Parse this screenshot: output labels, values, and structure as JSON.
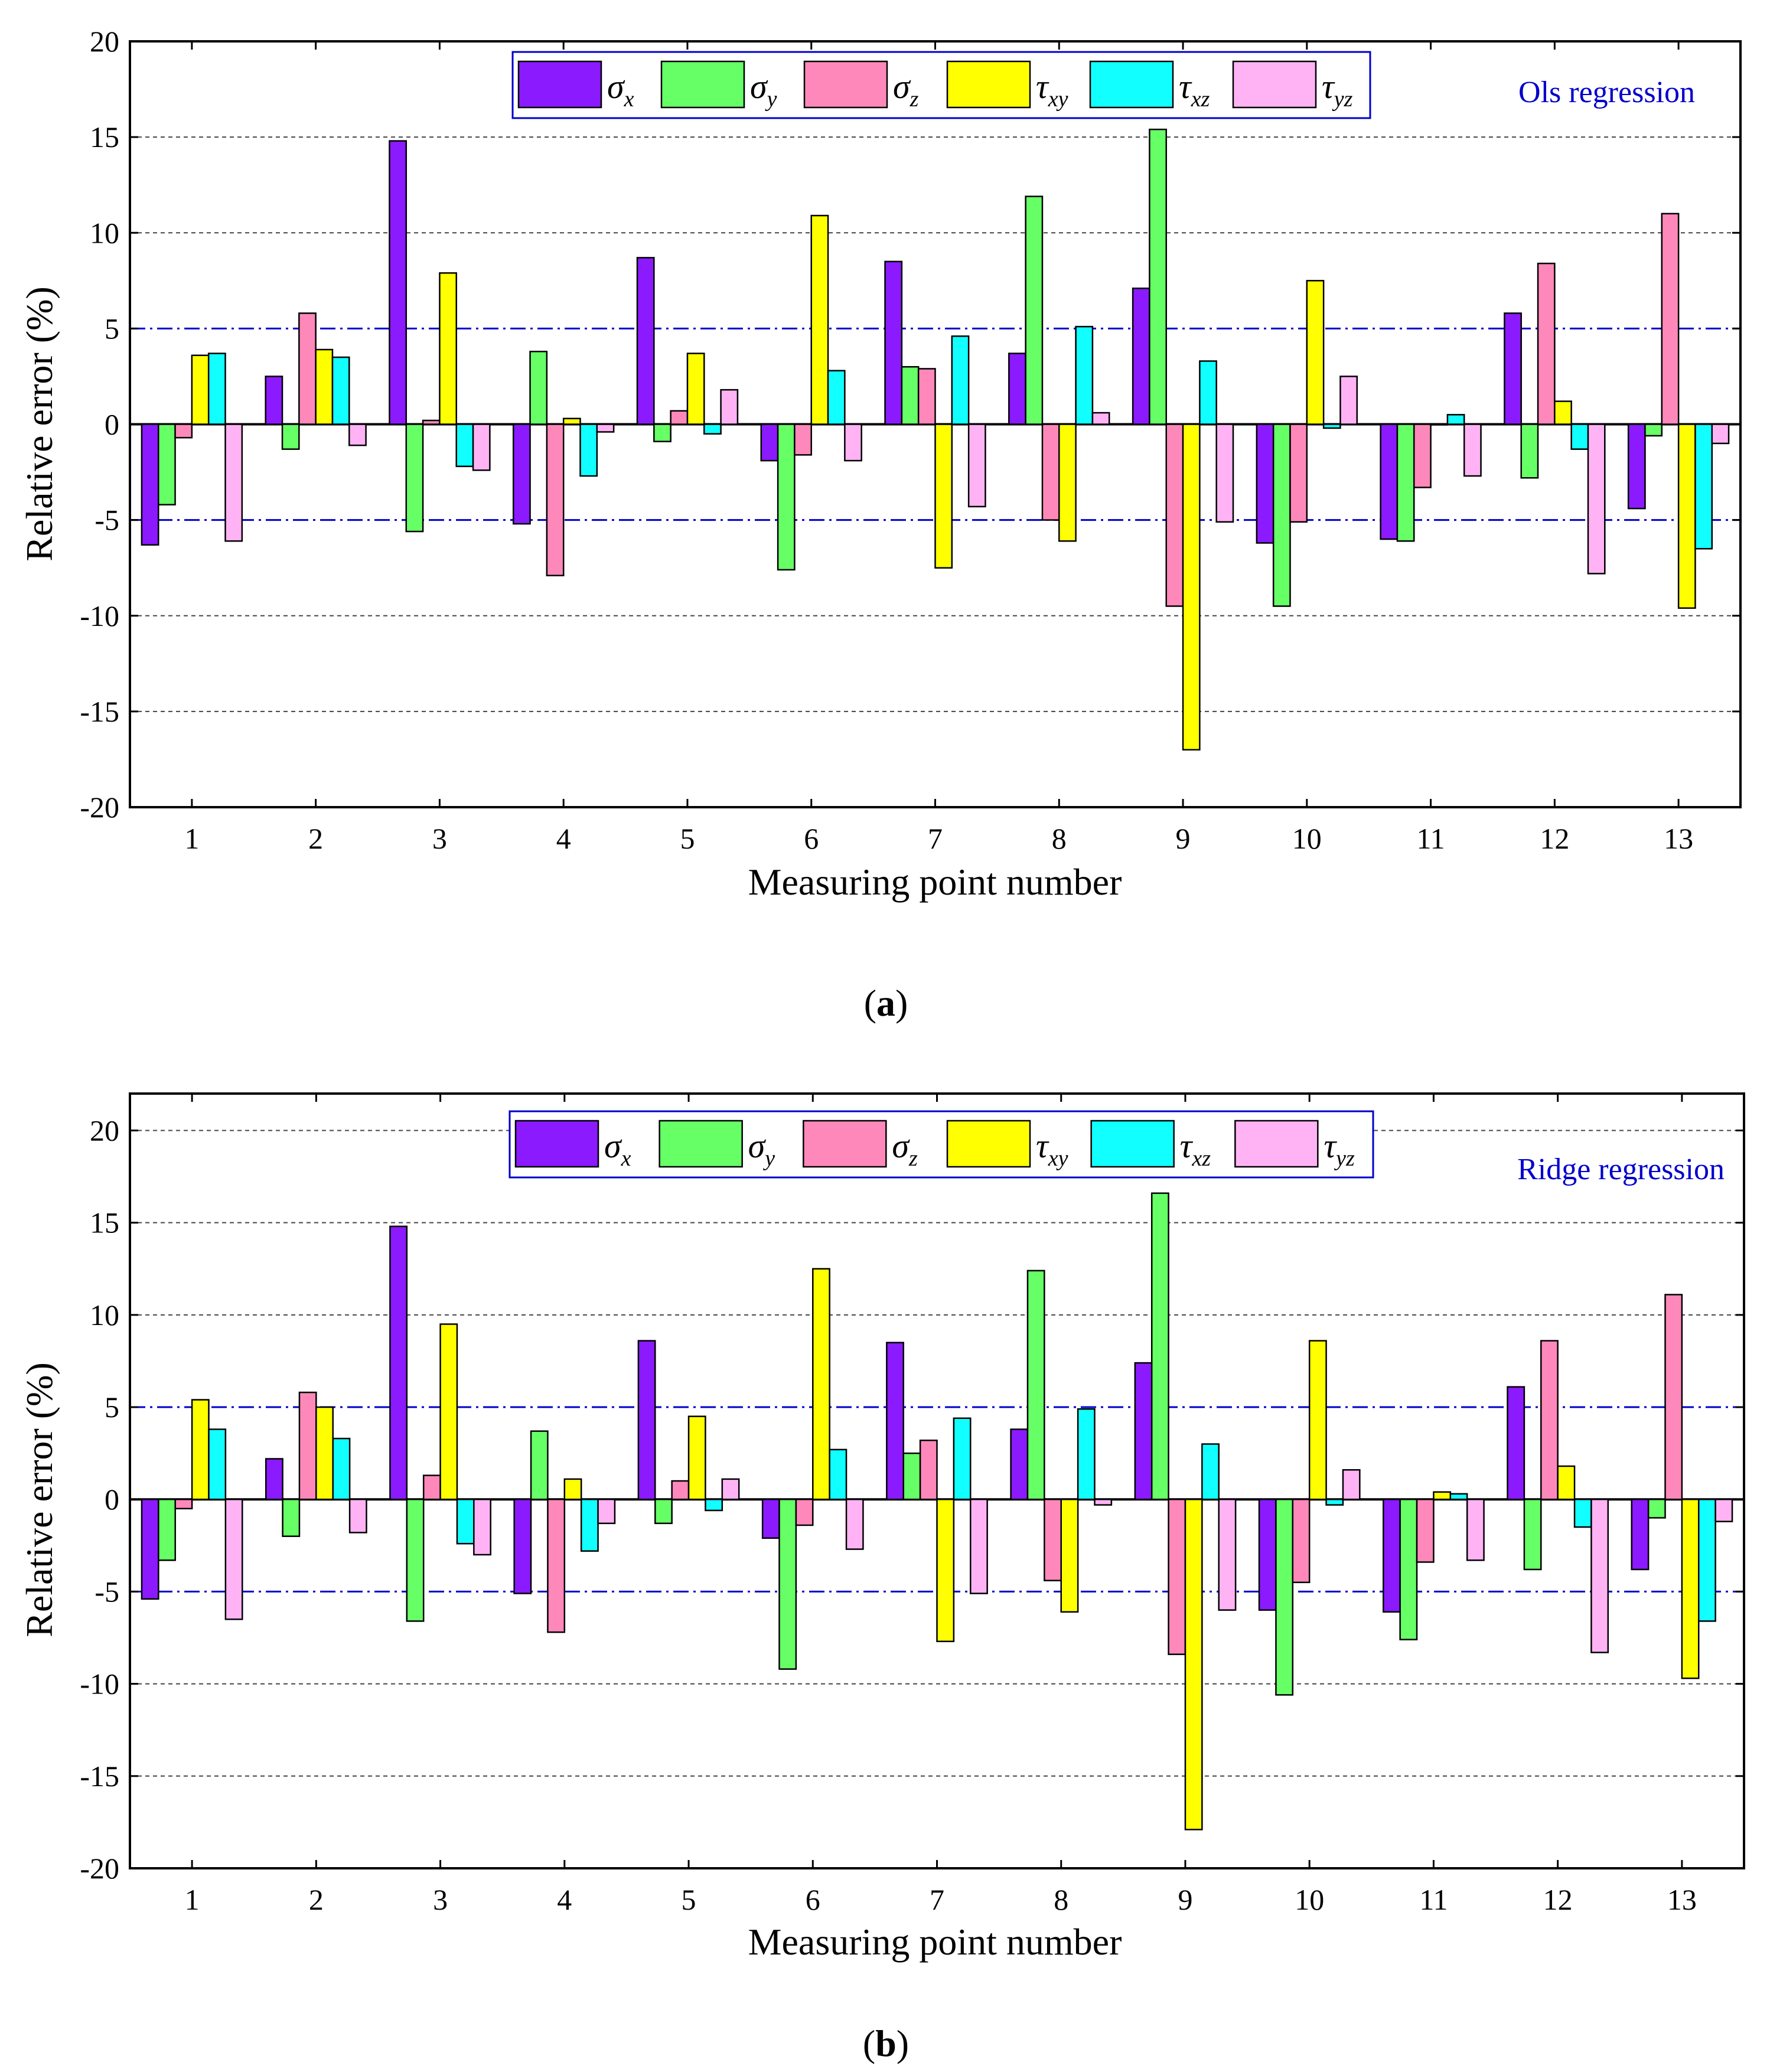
{
  "series_names": [
    "σx",
    "σy",
    "σz",
    "τxy",
    "τxz",
    "τyz"
  ],
  "legend": [
    {
      "sym": "σ",
      "sub": "x"
    },
    {
      "sym": "σ",
      "sub": "y"
    },
    {
      "sym": "σ",
      "sub": "z"
    },
    {
      "sym": "τ",
      "sub": "xy"
    },
    {
      "sym": "τ",
      "sub": "xz"
    },
    {
      "sym": "τ",
      "sub": "yz"
    }
  ],
  "colors": [
    "#8b1aff",
    "#66ff66",
    "#ff88bb",
    "#ffff00",
    "#11ffff",
    "#ffb3f5"
  ],
  "reference_line_color": "#0000cc",
  "chart_data": [
    {
      "type": "bar",
      "caption": "a",
      "annotation": "Ols regression",
      "xlabel": "Measuring point number",
      "ylabel": "Relative error (%)",
      "ylim": [
        -20,
        20
      ],
      "yticks": [
        -20,
        -15,
        -10,
        -5,
        0,
        5,
        10,
        15,
        20
      ],
      "ygrid_dashed": [
        -15,
        -10,
        10,
        15
      ],
      "reference_lines": [
        -5,
        5
      ],
      "categories": [
        "1",
        "2",
        "3",
        "4",
        "5",
        "6",
        "7",
        "8",
        "9",
        "10",
        "11",
        "12",
        "13"
      ],
      "series": [
        {
          "name": "σx",
          "values": [
            -6.3,
            2.5,
            14.8,
            -5.2,
            8.7,
            -1.9,
            8.5,
            3.7,
            7.1,
            -6.2,
            -6.0,
            5.8,
            -4.4
          ]
        },
        {
          "name": "σy",
          "values": [
            -4.2,
            -1.3,
            -5.6,
            3.8,
            -0.9,
            -7.6,
            3.0,
            11.9,
            15.4,
            -9.5,
            -6.1,
            -2.8,
            -0.6
          ]
        },
        {
          "name": "σz",
          "values": [
            -0.7,
            5.8,
            0.2,
            -7.9,
            0.7,
            -1.6,
            2.9,
            -5.0,
            -9.5,
            -5.1,
            -3.3,
            8.4,
            11.0
          ]
        },
        {
          "name": "τxy",
          "values": [
            3.6,
            3.9,
            7.9,
            0.3,
            3.7,
            10.9,
            -7.5,
            -6.1,
            -17.0,
            7.5,
            0.0,
            1.2,
            -9.6
          ]
        },
        {
          "name": "τxz",
          "values": [
            3.7,
            3.5,
            -2.2,
            -2.7,
            -0.5,
            2.8,
            4.6,
            5.1,
            3.3,
            -0.2,
            0.5,
            -1.3,
            -6.5
          ]
        },
        {
          "name": "τyz",
          "values": [
            -6.1,
            -1.1,
            -2.4,
            -0.4,
            1.8,
            -1.9,
            -4.3,
            0.6,
            -5.1,
            2.5,
            -2.7,
            -7.8,
            -1.0
          ]
        }
      ]
    },
    {
      "type": "bar",
      "caption": "b",
      "annotation": "Ridge regression",
      "xlabel": "Measuring point number",
      "ylabel": "Relative error (%)",
      "ylim": [
        -20,
        22
      ],
      "yticks": [
        -20,
        -15,
        -10,
        -5,
        0,
        5,
        10,
        15,
        20
      ],
      "ygrid_dashed": [
        -15,
        -10,
        10,
        15,
        20
      ],
      "reference_lines": [
        -5,
        5
      ],
      "categories": [
        "1",
        "2",
        "3",
        "4",
        "5",
        "6",
        "7",
        "8",
        "9",
        "10",
        "11",
        "12",
        "13"
      ],
      "series": [
        {
          "name": "σx",
          "values": [
            -5.4,
            2.2,
            14.8,
            -5.1,
            8.6,
            -2.1,
            8.5,
            3.8,
            7.4,
            -6.0,
            -6.1,
            6.1,
            -3.8
          ]
        },
        {
          "name": "σy",
          "values": [
            -3.3,
            -2.0,
            -6.6,
            3.7,
            -1.3,
            -9.2,
            2.5,
            12.4,
            16.6,
            -10.6,
            -7.6,
            -3.8,
            -1.0
          ]
        },
        {
          "name": "σz",
          "values": [
            -0.5,
            5.8,
            1.3,
            -7.2,
            1.0,
            -1.4,
            3.2,
            -4.4,
            -8.4,
            -4.5,
            -3.4,
            8.6,
            11.1
          ]
        },
        {
          "name": "τxy",
          "values": [
            5.4,
            5.0,
            9.5,
            1.1,
            4.5,
            12.5,
            -7.7,
            -6.1,
            -17.9,
            8.6,
            0.4,
            1.8,
            -9.7
          ]
        },
        {
          "name": "τxz",
          "values": [
            3.8,
            3.3,
            -2.4,
            -2.8,
            -0.6,
            2.7,
            4.4,
            4.9,
            3.0,
            -0.3,
            0.3,
            -1.5,
            -6.6
          ]
        },
        {
          "name": "τyz",
          "values": [
            -6.5,
            -1.8,
            -3.0,
            -1.3,
            1.1,
            -2.7,
            -5.1,
            -0.3,
            -6.0,
            1.6,
            -3.3,
            -8.3,
            -1.2
          ]
        }
      ]
    }
  ]
}
